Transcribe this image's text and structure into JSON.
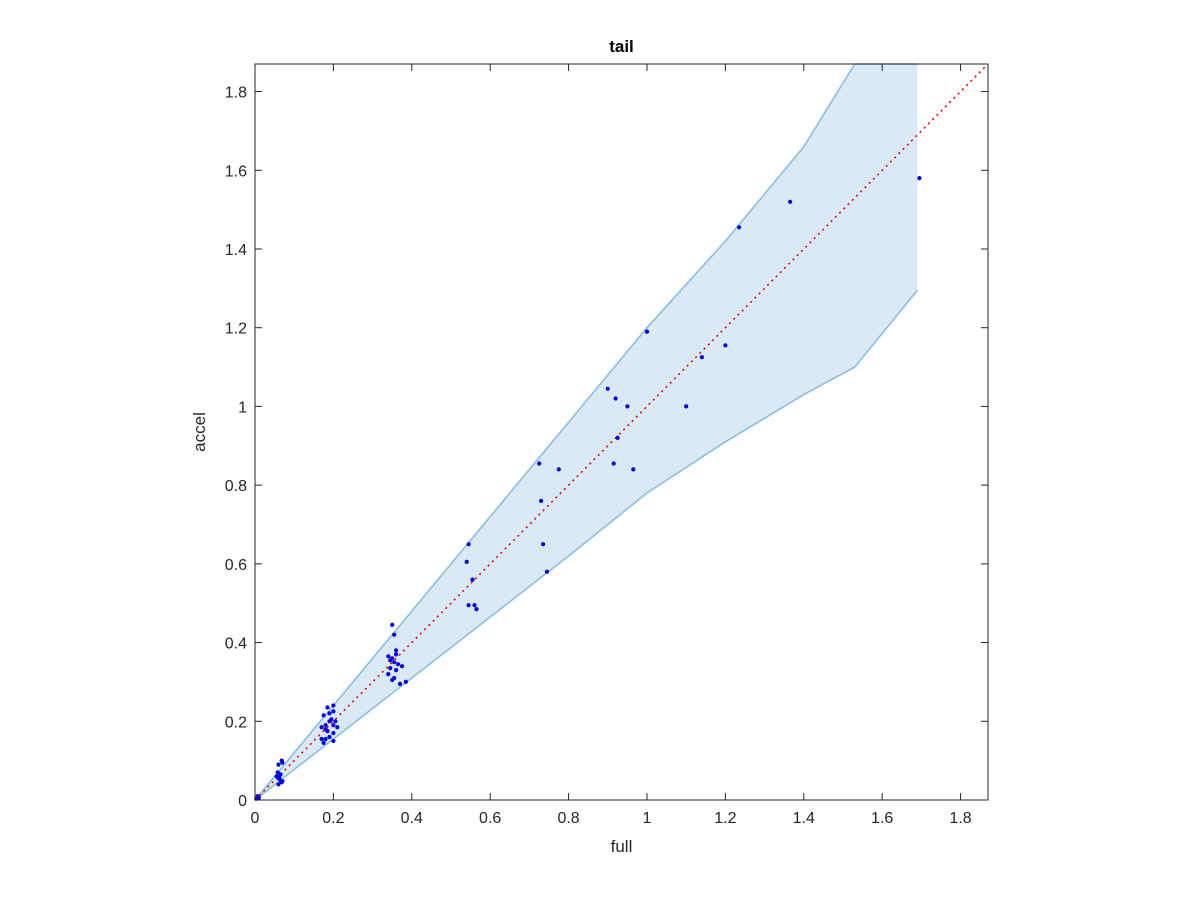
{
  "chart_data": {
    "type": "scatter",
    "title": "tail",
    "xlabel": "full",
    "ylabel": "accel",
    "xlim": [
      0,
      1.87
    ],
    "ylim": [
      0,
      1.87
    ],
    "grid": false,
    "x_ticks": [
      0,
      0.2,
      0.4,
      0.6,
      0.8,
      1,
      1.2,
      1.4,
      1.6,
      1.8
    ],
    "x_tick_labels": [
      "0",
      "0.2",
      "0.4",
      "0.6",
      "0.8",
      "1",
      "1.2",
      "1.4",
      "1.6",
      "1.8"
    ],
    "y_ticks": [
      0,
      0.2,
      0.4,
      0.6,
      0.8,
      1,
      1.2,
      1.4,
      1.6,
      1.8
    ],
    "y_tick_labels": [
      "0",
      "0.2",
      "0.4",
      "0.6",
      "0.8",
      "1",
      "1.2",
      "1.4",
      "1.6",
      "1.8"
    ],
    "reference_line": {
      "x": [
        0,
        1.87
      ],
      "y": [
        0,
        1.87
      ],
      "style": "dotted",
      "color": "#ff0000"
    },
    "band": {
      "color_fill": "#d9e9f5",
      "color_edge": "#88bfe0",
      "x": [
        0,
        0.2,
        0.4,
        0.6,
        0.8,
        1.0,
        1.2,
        1.4,
        1.53,
        1.69
      ],
      "upper": [
        0,
        0.24,
        0.48,
        0.72,
        0.96,
        1.2,
        1.42,
        1.66,
        1.87,
        1.87
      ],
      "lower": [
        0,
        0.155,
        0.31,
        0.465,
        0.62,
        0.78,
        0.91,
        1.03,
        1.1,
        1.295
      ]
    },
    "series": [
      {
        "color": "#0000ee",
        "points": [
          [
            0.003,
            0.003
          ],
          [
            0.007,
            0.01
          ],
          [
            0.01,
            0.006
          ],
          [
            0.06,
            0.09
          ],
          [
            0.068,
            0.1
          ],
          [
            0.07,
            0.095
          ],
          [
            0.065,
            0.065
          ],
          [
            0.058,
            0.07
          ],
          [
            0.06,
            0.055
          ],
          [
            0.062,
            0.058
          ],
          [
            0.065,
            0.05
          ],
          [
            0.07,
            0.048
          ],
          [
            0.055,
            0.06
          ],
          [
            0.068,
            0.045
          ],
          [
            0.06,
            0.04
          ],
          [
            0.18,
            0.18
          ],
          [
            0.19,
            0.2
          ],
          [
            0.2,
            0.24
          ],
          [
            0.185,
            0.235
          ],
          [
            0.175,
            0.215
          ],
          [
            0.19,
            0.22
          ],
          [
            0.195,
            0.205
          ],
          [
            0.2,
            0.19
          ],
          [
            0.18,
            0.19
          ],
          [
            0.17,
            0.185
          ],
          [
            0.185,
            0.175
          ],
          [
            0.2,
            0.17
          ],
          [
            0.19,
            0.16
          ],
          [
            0.18,
            0.155
          ],
          [
            0.2,
            0.15
          ],
          [
            0.175,
            0.145
          ],
          [
            0.17,
            0.155
          ],
          [
            0.205,
            0.2
          ],
          [
            0.21,
            0.185
          ],
          [
            0.2,
            0.225
          ],
          [
            0.35,
            0.445
          ],
          [
            0.355,
            0.42
          ],
          [
            0.34,
            0.365
          ],
          [
            0.35,
            0.36
          ],
          [
            0.36,
            0.37
          ],
          [
            0.345,
            0.355
          ],
          [
            0.355,
            0.35
          ],
          [
            0.36,
            0.38
          ],
          [
            0.345,
            0.335
          ],
          [
            0.36,
            0.33
          ],
          [
            0.365,
            0.345
          ],
          [
            0.375,
            0.34
          ],
          [
            0.355,
            0.31
          ],
          [
            0.37,
            0.295
          ],
          [
            0.385,
            0.3
          ],
          [
            0.34,
            0.32
          ],
          [
            0.35,
            0.305
          ],
          [
            0.545,
            0.65
          ],
          [
            0.54,
            0.605
          ],
          [
            0.555,
            0.56
          ],
          [
            0.545,
            0.495
          ],
          [
            0.56,
            0.495
          ],
          [
            0.565,
            0.485
          ],
          [
            0.725,
            0.855
          ],
          [
            0.73,
            0.76
          ],
          [
            0.735,
            0.65
          ],
          [
            0.745,
            0.58
          ],
          [
            0.775,
            0.84
          ],
          [
            0.9,
            1.045
          ],
          [
            0.92,
            1.02
          ],
          [
            0.925,
            0.92
          ],
          [
            0.915,
            0.855
          ],
          [
            0.95,
            1.0
          ],
          [
            0.965,
            0.84
          ],
          [
            1.0,
            1.19
          ],
          [
            1.1,
            1.0
          ],
          [
            1.14,
            1.125
          ],
          [
            1.2,
            1.155
          ],
          [
            1.235,
            1.455
          ],
          [
            1.365,
            1.52
          ],
          [
            1.695,
            1.58
          ]
        ]
      }
    ]
  }
}
